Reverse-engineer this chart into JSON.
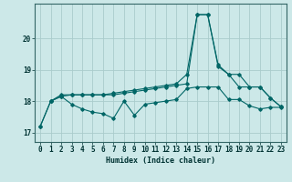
{
  "xlabel": "Humidex (Indice chaleur)",
  "ylabel": "",
  "background_color": "#cce8e8",
  "grid_color": "#aacccc",
  "line_color": "#006666",
  "xlim": [
    -0.5,
    23.5
  ],
  "ylim": [
    16.7,
    21.1
  ],
  "yticks": [
    17,
    18,
    19,
    20
  ],
  "xticks": [
    0,
    1,
    2,
    3,
    4,
    5,
    6,
    7,
    8,
    9,
    10,
    11,
    12,
    13,
    14,
    15,
    16,
    17,
    18,
    19,
    20,
    21,
    22,
    23
  ],
  "line1_x": [
    0,
    1,
    2,
    3,
    4,
    5,
    6,
    7,
    8,
    9,
    10,
    11,
    12,
    13,
    14,
    15,
    16,
    17,
    18,
    19,
    20,
    21,
    22,
    23
  ],
  "line1_y": [
    17.2,
    18.0,
    18.15,
    17.9,
    17.75,
    17.65,
    17.6,
    17.45,
    18.0,
    17.55,
    17.9,
    17.95,
    18.0,
    18.05,
    18.4,
    18.45,
    18.45,
    18.45,
    18.05,
    18.05,
    17.85,
    17.75,
    17.8,
    17.8
  ],
  "line2_x": [
    0,
    1,
    2,
    3,
    4,
    5,
    6,
    7,
    8,
    9,
    10,
    11,
    12,
    13,
    14,
    15,
    16,
    17,
    18,
    19,
    20,
    21,
    22,
    23
  ],
  "line2_y": [
    17.2,
    18.0,
    18.2,
    18.2,
    18.2,
    18.2,
    18.2,
    18.25,
    18.3,
    18.35,
    18.4,
    18.45,
    18.5,
    18.55,
    18.85,
    20.75,
    20.75,
    19.15,
    18.85,
    18.45,
    18.45,
    18.45,
    18.1,
    17.82
  ],
  "line3_x": [
    1,
    2,
    3,
    4,
    5,
    6,
    7,
    8,
    9,
    10,
    11,
    12,
    13,
    14,
    15,
    16,
    17,
    18,
    19,
    20,
    21,
    22,
    23
  ],
  "line3_y": [
    18.0,
    18.15,
    18.2,
    18.2,
    18.2,
    18.2,
    18.2,
    18.25,
    18.3,
    18.35,
    18.4,
    18.45,
    18.5,
    18.55,
    20.75,
    20.75,
    19.1,
    18.85,
    18.85,
    18.45,
    18.45,
    18.1,
    17.82
  ],
  "title_fontsize": 7,
  "label_fontsize": 6,
  "tick_fontsize": 5.5
}
